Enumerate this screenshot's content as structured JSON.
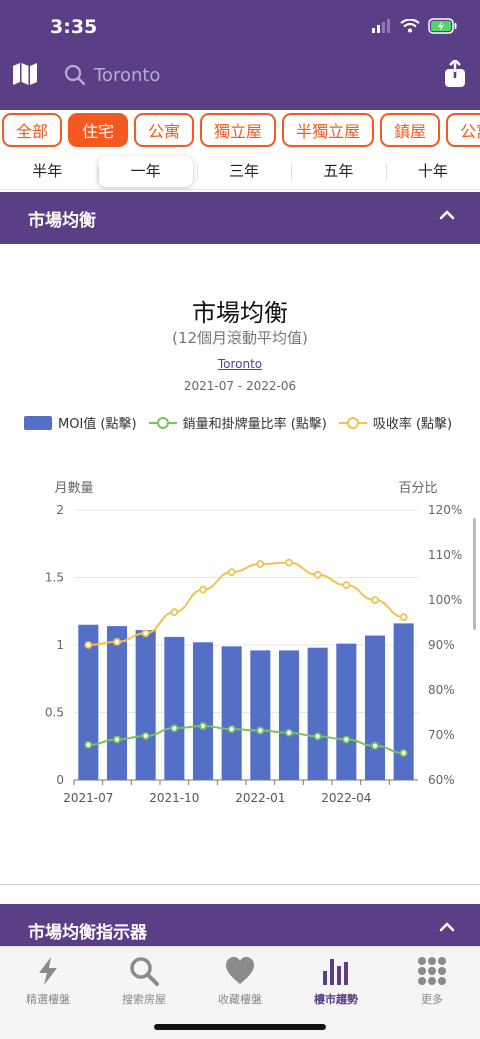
{
  "status": {
    "time": "3:35"
  },
  "search": {
    "placeholder": "Toronto"
  },
  "chips": [
    {
      "label": "全部",
      "active": false
    },
    {
      "label": "住宅",
      "active": true
    },
    {
      "label": "公寓",
      "active": false
    },
    {
      "label": "獨立屋",
      "active": false
    },
    {
      "label": "半獨立屋",
      "active": false
    },
    {
      "label": "鎮屋",
      "active": false
    },
    {
      "label": "公寓",
      "active": false
    }
  ],
  "periods": [
    {
      "label": "半年",
      "active": false
    },
    {
      "label": "一年",
      "active": true
    },
    {
      "label": "三年",
      "active": false
    },
    {
      "label": "五年",
      "active": false
    },
    {
      "label": "十年",
      "active": false
    }
  ],
  "section1": {
    "title": "市場均衡"
  },
  "section2": {
    "title": "市場均衡指示器"
  },
  "card": {
    "title": "市場均衡",
    "subtitle": "(12個月滾動平均值)",
    "city": "Toronto",
    "date_range": "2021-07 - 2022-06"
  },
  "legend": [
    {
      "label": "MOI值 (點擊)"
    },
    {
      "label": "銷量和掛牌量比率 (點擊)"
    },
    {
      "label": "吸收率 (點擊)"
    }
  ],
  "colors": {
    "purple": "#5b3f86",
    "orange": "#f45a1f",
    "bar": "#5470c6",
    "green": "#7ac35a",
    "yellow": "#f2c14e"
  },
  "chart_data": {
    "type": "bar",
    "left_axis_label": "月數量",
    "right_axis_label": "百分比",
    "x": [
      "2021-07",
      "2021-08",
      "2021-09",
      "2021-10",
      "2021-11",
      "2021-12",
      "2022-01",
      "2022-02",
      "2022-03",
      "2022-04",
      "2022-05",
      "2022-06"
    ],
    "x_tick_labels": [
      "2021-07",
      "2021-10",
      "2022-01",
      "2022-04"
    ],
    "left_ylim": [
      0,
      2
    ],
    "left_ticks": [
      "0",
      "0.5",
      "1",
      "1.5",
      "2"
    ],
    "right_ylim": [
      60,
      120
    ],
    "right_ticks": [
      "60%",
      "70%",
      "80%",
      "90%",
      "100%",
      "110%",
      "120%"
    ],
    "series": [
      {
        "name": "MOI值 (點擊)",
        "type": "bar",
        "axis": "left",
        "values": [
          1.15,
          1.14,
          1.11,
          1.06,
          1.02,
          0.99,
          0.96,
          0.96,
          0.98,
          1.01,
          1.07,
          1.16
        ]
      },
      {
        "name": "銷量和掛牌量比率 (點擊)",
        "type": "line",
        "axis": "right",
        "values": [
          67.8,
          69.0,
          69.8,
          71.5,
          72.0,
          71.3,
          71.0,
          70.5,
          69.7,
          69.0,
          67.6,
          66.0
        ]
      },
      {
        "name": "吸收率 (點擊)",
        "type": "line",
        "axis": "right",
        "values": [
          90.0,
          90.7,
          92.6,
          97.3,
          102.3,
          106.2,
          108.0,
          108.3,
          105.6,
          103.3,
          100.0,
          96.2
        ]
      }
    ],
    "grid": true
  },
  "nav": [
    {
      "label": "精選樓盤",
      "icon": "bolt-icon",
      "active": false
    },
    {
      "label": "搜索房屋",
      "icon": "search-icon",
      "active": false
    },
    {
      "label": "收藏樓盤",
      "icon": "heart-icon",
      "active": false
    },
    {
      "label": "樓市趨勢",
      "icon": "bar-chart-icon",
      "active": true
    },
    {
      "label": "更多",
      "icon": "grid-dots-icon",
      "active": false
    }
  ]
}
